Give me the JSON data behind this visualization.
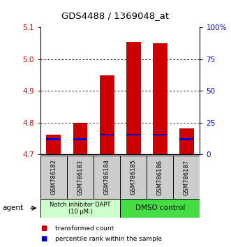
{
  "title": "GDS4488 / 1369048_at",
  "samples": [
    "GSM786182",
    "GSM786183",
    "GSM786184",
    "GSM786185",
    "GSM786186",
    "GSM786187"
  ],
  "bar_bottoms": [
    4.7,
    4.7,
    4.7,
    4.7,
    4.7,
    4.7
  ],
  "bar_tops": [
    4.762,
    4.8,
    4.948,
    5.053,
    5.05,
    4.782
  ],
  "percentile_values": [
    4.748,
    4.748,
    4.762,
    4.762,
    4.762,
    4.748
  ],
  "ylim": [
    4.7,
    5.1
  ],
  "y2lim": [
    0,
    100
  ],
  "yticks": [
    4.7,
    4.8,
    4.9,
    5.0,
    5.1
  ],
  "y2ticks": [
    0,
    25,
    50,
    75,
    100
  ],
  "y2ticklabels": [
    "0",
    "25",
    "50",
    "75",
    "100%"
  ],
  "bar_color": "#cc0000",
  "percentile_color": "#0000cc",
  "bar_width": 0.55,
  "group1_label": "Notch inhibitor DAPT\n(10 μM.)",
  "group2_label": "DMSO control",
  "group1_color": "#ccffcc",
  "group2_color": "#44dd44",
  "agent_label": "agent",
  "legend_items": [
    "transformed count",
    "percentile rank within the sample"
  ],
  "legend_colors": [
    "#cc0000",
    "#0000cc"
  ],
  "tick_color_left": "#cc0000",
  "tick_color_right": "#0000cc",
  "sample_box_color": "#cccccc"
}
